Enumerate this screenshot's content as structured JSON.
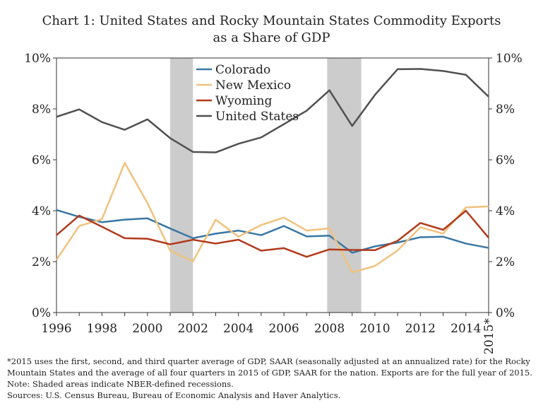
{
  "chart_data": {
    "type": "line",
    "title": "Chart 1: United States and Rocky Mountain States Commodity Exports",
    "subtitle": "as a Share of GDP",
    "x": [
      "1996",
      "1997",
      "1998",
      "1999",
      "2000",
      "2001",
      "2002",
      "2003",
      "2004",
      "2005",
      "2006",
      "2007",
      "2008",
      "2009",
      "2010",
      "2011",
      "2012",
      "2013",
      "2014",
      "2015*"
    ],
    "x_tick_labels": [
      "1996",
      "1998",
      "2000",
      "2002",
      "2004",
      "2006",
      "2008",
      "2010",
      "2012",
      "2014",
      "2015*"
    ],
    "y_tick_labels": [
      "0%",
      "2%",
      "4%",
      "6%",
      "8%",
      "10%"
    ],
    "ylim": [
      0,
      10
    ],
    "grid": false,
    "legend_position": "top-center",
    "recessions": [
      [
        2001,
        2002
      ],
      [
        2007.9,
        2009.4
      ]
    ],
    "series": [
      {
        "name": "Colorado",
        "color": "#3a77a3",
        "values": [
          4.03,
          3.76,
          3.55,
          3.65,
          3.7,
          3.3,
          2.92,
          3.1,
          3.22,
          3.04,
          3.4,
          2.99,
          3.02,
          2.35,
          2.6,
          2.75,
          2.96,
          2.98,
          2.71,
          2.54
        ]
      },
      {
        "name": "New Mexico",
        "color": "#f0c27d",
        "values": [
          2.07,
          3.4,
          3.67,
          5.88,
          4.3,
          2.43,
          2.01,
          3.65,
          2.98,
          3.44,
          3.73,
          3.22,
          3.31,
          1.58,
          1.83,
          2.44,
          3.35,
          3.1,
          4.13,
          4.17
        ]
      },
      {
        "name": "Wyoming",
        "color": "#b23a1c",
        "values": [
          3.04,
          3.81,
          3.37,
          2.92,
          2.9,
          2.68,
          2.86,
          2.71,
          2.86,
          2.43,
          2.53,
          2.19,
          2.48,
          2.46,
          2.45,
          2.82,
          3.52,
          3.25,
          4.0,
          2.94
        ]
      },
      {
        "name": "United States",
        "color": "#505050",
        "values": [
          7.69,
          7.98,
          7.48,
          7.18,
          7.59,
          6.85,
          6.31,
          6.29,
          6.63,
          6.88,
          7.4,
          7.93,
          8.73,
          7.33,
          8.55,
          9.56,
          9.57,
          9.49,
          9.34,
          8.48
        ]
      }
    ]
  },
  "notes": {
    "footnote": "*2015 uses the first, second, and third quarter average of GDP, SAAR (seasonally adjusted at an annualized rate) for the Rocky Mountain States and the average of all four quarters in 2015 of GDP, SAAR for the nation. Exports are for the full year of 2015.",
    "shading_note": "Note: Shaded areas indicate NBER-defined recessions.",
    "sources": "Sources: U.S. Census Bureau, Bureau of Economic Analysis and Haver Analytics."
  }
}
